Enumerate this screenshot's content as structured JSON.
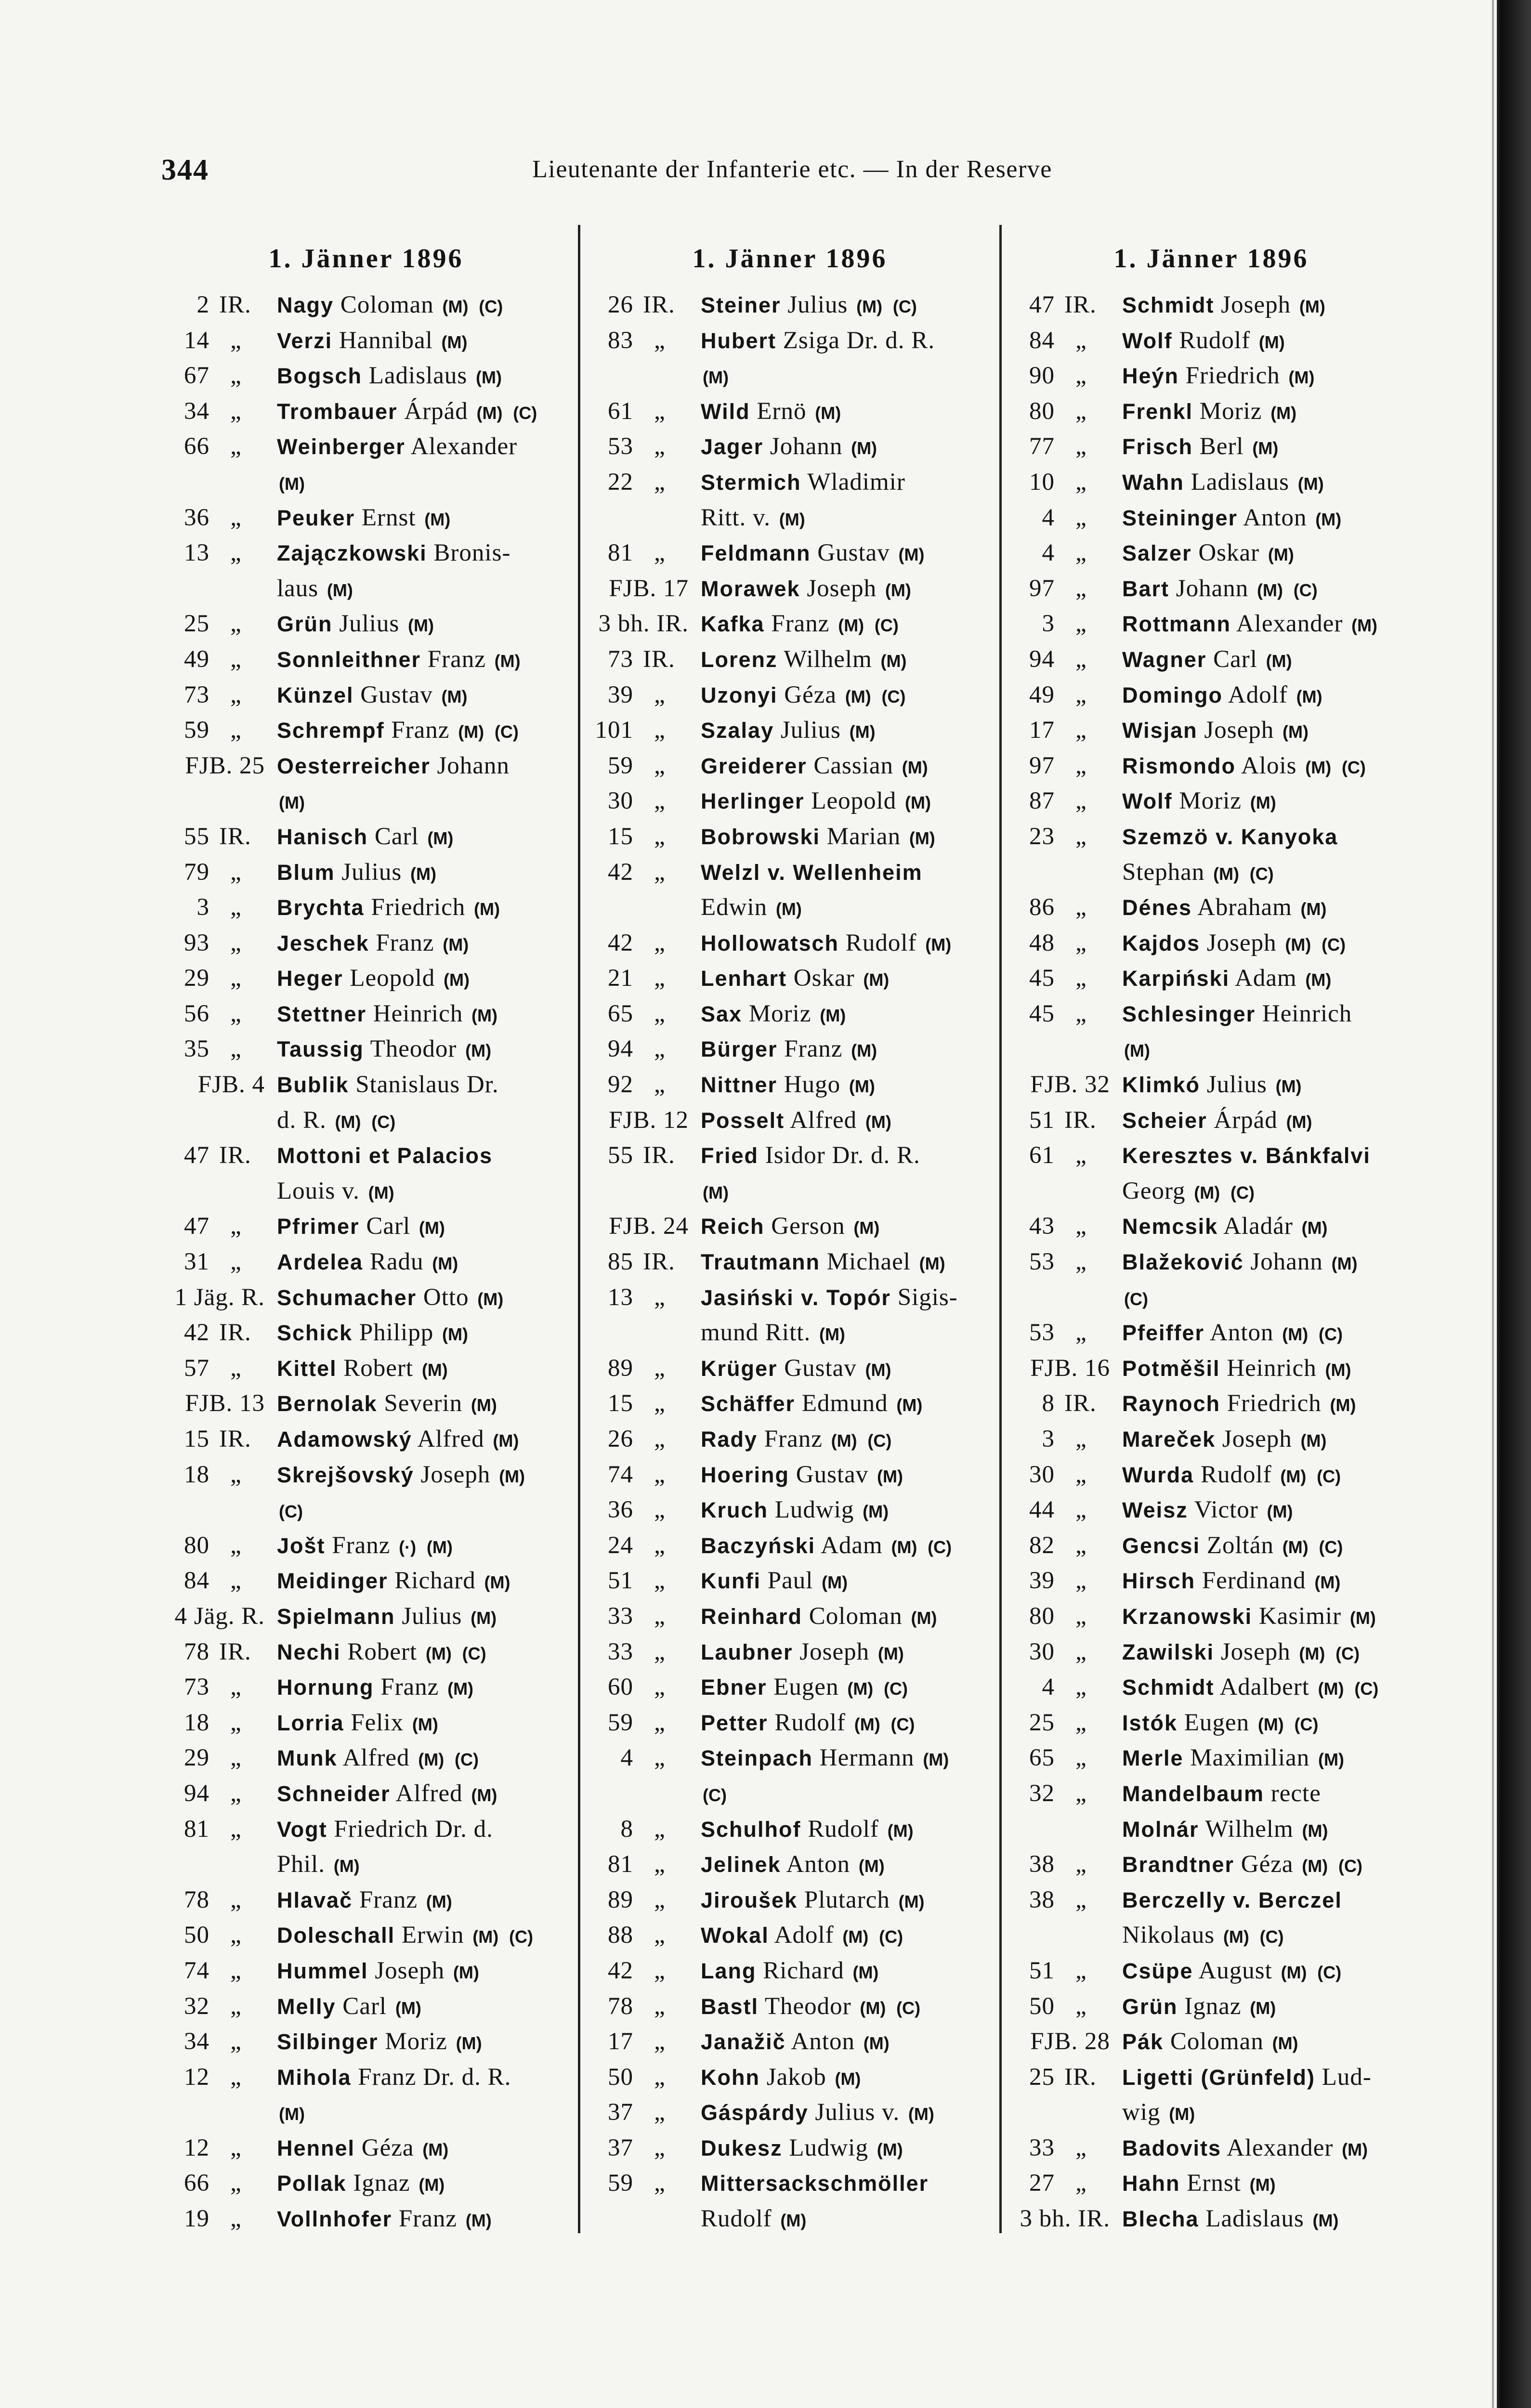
{
  "page_number": "344",
  "running_head": "Lieutenante der Infanterie etc. — In der Reserve",
  "columns": [
    {
      "heading": "1. Jänner 1896",
      "entries": [
        {
          "n": "2",
          "u": "IR.",
          "b": "Nagy",
          "t": "Coloman (M) (C)"
        },
        {
          "n": "14",
          "b": "Verzi",
          "t": "Hannibal (M)"
        },
        {
          "n": "67",
          "b": "Bogsch",
          "t": "Ladislaus (M)"
        },
        {
          "n": "34",
          "b": "Trombauer",
          "t": "Árpád (M) (C)"
        },
        {
          "n": "66",
          "b": "Weinberger",
          "t": "Alexander",
          "l2": "(M)"
        },
        {
          "n": "36",
          "b": "Peuker",
          "t": "Ernst (M)"
        },
        {
          "n": "13",
          "b": "Zajączkowski",
          "t": "Bronis-",
          "l2": "laus (M)"
        },
        {
          "n": "25",
          "b": "Grün",
          "t": "Julius (M)"
        },
        {
          "n": "49",
          "b": "Sonnleithner",
          "t": "Franz (M)"
        },
        {
          "n": "73",
          "b": "Künzel",
          "t": "Gustav (M)"
        },
        {
          "n": "59",
          "b": "Schrempf",
          "t": "Franz (M) (C)"
        },
        {
          "p": "FJB. 25",
          "b": "Oesterreicher",
          "t": "Johann",
          "l2": "(M)"
        },
        {
          "n": "55",
          "u": "IR.",
          "b": "Hanisch",
          "t": "Carl (M)"
        },
        {
          "n": "79",
          "b": "Blum",
          "t": "Julius (M)"
        },
        {
          "n": "3",
          "b": "Brychta",
          "t": "Friedrich (M)"
        },
        {
          "n": "93",
          "b": "Jeschek",
          "t": "Franz (M)"
        },
        {
          "n": "29",
          "b": "Heger",
          "t": "Leopold (M)"
        },
        {
          "n": "56",
          "b": "Stettner",
          "t": "Heinrich (M)"
        },
        {
          "n": "35",
          "b": "Taussig",
          "t": "Theodor (M)"
        },
        {
          "p": "FJB. 4",
          "b": "Bublik",
          "t": "Stanislaus Dr.",
          "l2": "d. R. (M) (C)"
        },
        {
          "n": "47",
          "u": "IR.",
          "b": "Mottoni et Palacios",
          "t": "",
          "l2": "Louis v. (M)"
        },
        {
          "n": "47",
          "b": "Pfrimer",
          "t": "Carl (M)"
        },
        {
          "n": "31",
          "b": "Ardelea",
          "t": "Radu (M)"
        },
        {
          "p": "1 Jäg. R.",
          "b": "Schumacher",
          "t": "Otto (M)"
        },
        {
          "n": "42",
          "u": "IR.",
          "b": "Schick",
          "t": "Philipp (M)"
        },
        {
          "n": "57",
          "b": "Kittel",
          "t": "Robert (M)"
        },
        {
          "p": "FJB. 13",
          "b": "Bernolak",
          "t": "Severin (M)"
        },
        {
          "n": "15",
          "u": "IR.",
          "b": "Adamowský",
          "t": "Alfred (M)"
        },
        {
          "n": "18",
          "b": "Skrejšovský",
          "t": "Joseph (M)",
          "l2": "(C)"
        },
        {
          "n": "80",
          "b": "Jošt",
          "t": "Franz (·) (M)"
        },
        {
          "n": "84",
          "b": "Meidinger",
          "t": "Richard (M)"
        },
        {
          "p": "4 Jäg. R.",
          "b": "Spielmann",
          "t": "Julius (M)"
        },
        {
          "n": "78",
          "u": "IR.",
          "b": "Nechi",
          "t": "Robert (M) (C)"
        },
        {
          "n": "73",
          "b": "Hornung",
          "t": "Franz (M)"
        },
        {
          "n": "18",
          "b": "Lorria",
          "t": "Felix (M)"
        },
        {
          "n": "29",
          "b": "Munk",
          "t": "Alfred (M) (C)"
        },
        {
          "n": "94",
          "b": "Schneider",
          "t": "Alfred (M)"
        },
        {
          "n": "81",
          "b": "Vogt",
          "t": "Friedrich Dr. d.",
          "l2": "Phil. (M)"
        },
        {
          "n": "78",
          "b": "Hlavač",
          "t": "Franz (M)"
        },
        {
          "n": "50",
          "b": "Doleschall",
          "t": "Erwin (M) (C)"
        },
        {
          "n": "74",
          "b": "Hummel",
          "t": "Joseph (M)"
        },
        {
          "n": "32",
          "b": "Melly",
          "t": "Carl (M)"
        },
        {
          "n": "34",
          "b": "Silbinger",
          "t": "Moriz (M)"
        },
        {
          "n": "12",
          "b": "Mihola",
          "t": "Franz Dr. d. R.",
          "l2": "(M)"
        },
        {
          "n": "12",
          "b": "Hennel",
          "t": "Géza (M)"
        },
        {
          "n": "66",
          "b": "Pollak",
          "t": "Ignaz (M)"
        },
        {
          "n": "19",
          "b": "Vollnhofer",
          "t": "Franz (M)"
        }
      ]
    },
    {
      "heading": "1. Jänner 1896",
      "entries": [
        {
          "n": "26",
          "u": "IR.",
          "b": "Steiner",
          "t": "Julius (M) (C)"
        },
        {
          "n": "83",
          "b": "Hubert",
          "t": "Zsiga Dr. d. R.",
          "l2": "(M)"
        },
        {
          "n": "61",
          "b": "Wild",
          "t": "Ernö (M)"
        },
        {
          "n": "53",
          "b": "Jager",
          "t": "Johann (M)"
        },
        {
          "n": "22",
          "b": "Stermich",
          "t": "Wladimir",
          "l2": "Ritt. v. (M)"
        },
        {
          "n": "81",
          "b": "Feldmann",
          "t": "Gustav (M)"
        },
        {
          "p": "FJB. 17",
          "b": "Morawek",
          "t": "Joseph (M)"
        },
        {
          "p": "3 bh. IR.",
          "b": "Kafka",
          "t": "Franz (M) (C)"
        },
        {
          "n": "73",
          "u": "IR.",
          "b": "Lorenz",
          "t": "Wilhelm (M)"
        },
        {
          "n": "39",
          "b": "Uzonyi",
          "t": "Géza (M) (C)"
        },
        {
          "n": "101",
          "b": "Szalay",
          "t": "Julius (M)"
        },
        {
          "n": "59",
          "b": "Greiderer",
          "t": "Cassian (M)"
        },
        {
          "n": "30",
          "b": "Herlinger",
          "t": "Leopold (M)"
        },
        {
          "n": "15",
          "b": "Bobrowski",
          "t": "Marian (M)"
        },
        {
          "n": "42",
          "b": "Welzl v. Wellenheim",
          "t": "",
          "l2": "Edwin (M)"
        },
        {
          "n": "42",
          "b": "Hollowatsch",
          "t": "Rudolf (M)"
        },
        {
          "n": "21",
          "b": "Lenhart",
          "t": "Oskar (M)"
        },
        {
          "n": "65",
          "b": "Sax",
          "t": "Moriz (M)"
        },
        {
          "n": "94",
          "b": "Bürger",
          "t": "Franz (M)"
        },
        {
          "n": "92",
          "b": "Nittner",
          "t": "Hugo (M)"
        },
        {
          "p": "FJB. 12",
          "b": "Posselt",
          "t": "Alfred (M)"
        },
        {
          "n": "55",
          "u": "IR.",
          "b": "Fried",
          "t": "Isidor Dr. d. R.",
          "l2": "(M)"
        },
        {
          "p": "FJB. 24",
          "b": "Reich",
          "t": "Gerson (M)"
        },
        {
          "n": "85",
          "u": "IR.",
          "b": "Trautmann",
          "t": "Michael (M)"
        },
        {
          "n": "13",
          "b": "Jasiński v. Topór",
          "t": "Sigis-",
          "l2": "mund Ritt. (M)"
        },
        {
          "n": "89",
          "b": "Krüger",
          "t": "Gustav (M)"
        },
        {
          "n": "15",
          "b": "Schäffer",
          "t": "Edmund (M)"
        },
        {
          "n": "26",
          "b": "Rady",
          "t": "Franz (M) (C)"
        },
        {
          "n": "74",
          "b": "Hoering",
          "t": "Gustav (M)"
        },
        {
          "n": "36",
          "b": "Kruch",
          "t": "Ludwig (M)"
        },
        {
          "n": "24",
          "b": "Baczyński",
          "t": "Adam (M) (C)"
        },
        {
          "n": "51",
          "b": "Kunfi",
          "t": "Paul (M)"
        },
        {
          "n": "33",
          "b": "Reinhard",
          "t": "Coloman (M)"
        },
        {
          "n": "33",
          "b": "Laubner",
          "t": "Joseph (M)"
        },
        {
          "n": "60",
          "b": "Ebner",
          "t": "Eugen (M) (C)"
        },
        {
          "n": "59",
          "b": "Petter",
          "t": "Rudolf (M) (C)"
        },
        {
          "n": "4",
          "b": "Steinpach",
          "t": "Hermann (M)",
          "l2": "(C)"
        },
        {
          "n": "8",
          "b": "Schulhof",
          "t": "Rudolf (M)"
        },
        {
          "n": "81",
          "b": "Jelinek",
          "t": "Anton (M)"
        },
        {
          "n": "89",
          "b": "Jiroušek",
          "t": "Plutarch (M)"
        },
        {
          "n": "88",
          "b": "Wokal",
          "t": "Adolf (M) (C)"
        },
        {
          "n": "42",
          "b": "Lang",
          "t": "Richard (M)"
        },
        {
          "n": "78",
          "b": "Bastl",
          "t": "Theodor (M) (C)"
        },
        {
          "n": "17",
          "b": "Janažič",
          "t": "Anton (M)"
        },
        {
          "n": "50",
          "b": "Kohn",
          "t": "Jakob (M)"
        },
        {
          "n": "37",
          "b": "Gáspárdy",
          "t": "Julius v. (M)"
        },
        {
          "n": "37",
          "b": "Dukesz",
          "t": "Ludwig (M)"
        },
        {
          "n": "59",
          "b": "Mittersackschmöller",
          "t": "",
          "l2": "Rudolf (M)"
        }
      ]
    },
    {
      "heading": "1. Jänner 1896",
      "entries": [
        {
          "n": "47",
          "u": "IR.",
          "b": "Schmidt",
          "t": "Joseph (M)"
        },
        {
          "n": "84",
          "b": "Wolf",
          "t": "Rudolf (M)"
        },
        {
          "n": "90",
          "b": "Heýn",
          "t": "Friedrich (M)"
        },
        {
          "n": "80",
          "b": "Frenkl",
          "t": "Moriz (M)"
        },
        {
          "n": "77",
          "b": "Frisch",
          "t": "Berl (M)"
        },
        {
          "n": "10",
          "b": "Wahn",
          "t": "Ladislaus (M)"
        },
        {
          "n": "4",
          "b": "Steininger",
          "t": "Anton (M)"
        },
        {
          "n": "4",
          "b": "Salzer",
          "t": "Oskar (M)"
        },
        {
          "n": "97",
          "b": "Bart",
          "t": "Johann (M) (C)"
        },
        {
          "n": "3",
          "b": "Rottmann",
          "t": "Alexander (M)"
        },
        {
          "n": "94",
          "b": "Wagner",
          "t": "Carl (M)"
        },
        {
          "n": "49",
          "b": "Domingo",
          "t": "Adolf (M)"
        },
        {
          "n": "17",
          "b": "Wisjan",
          "t": "Joseph (M)"
        },
        {
          "n": "97",
          "b": "Rismondo",
          "t": "Alois (M) (C)"
        },
        {
          "n": "87",
          "b": "Wolf",
          "t": "Moriz (M)"
        },
        {
          "n": "23",
          "b": "Szemzö v. Kanyoka",
          "t": "",
          "l2": "Stephan (M) (C)"
        },
        {
          "n": "86",
          "b": "Dénes",
          "t": "Abraham (M)"
        },
        {
          "n": "48",
          "b": "Kajdos",
          "t": "Joseph (M) (C)"
        },
        {
          "n": "45",
          "b": "Karpiński",
          "t": "Adam (M)"
        },
        {
          "n": "45",
          "b": "Schlesinger",
          "t": "Heinrich",
          "l2": "(M)"
        },
        {
          "p": "FJB. 32",
          "b": "Klimkó",
          "t": "Julius (M)"
        },
        {
          "n": "51",
          "u": "IR.",
          "b": "Scheier",
          "t": "Árpád (M)"
        },
        {
          "n": "61",
          "b": "Keresztes v. Bánkfalvi",
          "t": "",
          "l2": "Georg (M) (C)"
        },
        {
          "n": "43",
          "b": "Nemcsik",
          "t": "Aladár (M)"
        },
        {
          "n": "53",
          "b": "Blažeković",
          "t": "Johann (M)",
          "l2": "(C)"
        },
        {
          "n": "53",
          "b": "Pfeiffer",
          "t": "Anton (M) (C)"
        },
        {
          "p": "FJB. 16",
          "b": "Potměšil",
          "t": "Heinrich (M)"
        },
        {
          "n": "8",
          "u": "IR.",
          "b": "Raynoch",
          "t": "Friedrich (M)"
        },
        {
          "n": "3",
          "b": "Mareček",
          "t": "Joseph (M)"
        },
        {
          "n": "30",
          "b": "Wurda",
          "t": "Rudolf (M) (C)"
        },
        {
          "n": "44",
          "b": "Weisz",
          "t": "Victor (M)"
        },
        {
          "n": "82",
          "b": "Gencsi",
          "t": "Zoltán (M) (C)"
        },
        {
          "n": "39",
          "b": "Hirsch",
          "t": "Ferdinand (M)"
        },
        {
          "n": "80",
          "b": "Krzanowski",
          "t": "Kasimir (M)"
        },
        {
          "n": "30",
          "b": "Zawilski",
          "t": "Joseph (M) (C)"
        },
        {
          "n": "4",
          "b": "Schmidt",
          "t": "Adalbert (M) (C)"
        },
        {
          "n": "25",
          "b": "Istók",
          "t": "Eugen (M) (C)"
        },
        {
          "n": "65",
          "b": "Merle",
          "t": "Maximilian (M)"
        },
        {
          "n": "32",
          "b": "Mandelbaum",
          "t": "recte",
          "l2b": "Molnár",
          "l2": "Wilhelm (M)"
        },
        {
          "n": "38",
          "b": "Brandtner",
          "t": "Géza (M) (C)"
        },
        {
          "n": "38",
          "b": "Berczelly v. Berczel",
          "t": "",
          "l2": "Nikolaus (M) (C)"
        },
        {
          "n": "51",
          "b": "Csüpe",
          "t": "August (M) (C)"
        },
        {
          "n": "50",
          "b": "Grün",
          "t": "Ignaz (M)"
        },
        {
          "p": "FJB. 28",
          "b": "Pák",
          "t": "Coloman (M)"
        },
        {
          "n": "25",
          "u": "IR.",
          "b": "Ligetti (Grünfeld)",
          "t": "Lud-",
          "l2": "wig (M)"
        },
        {
          "n": "33",
          "b": "Badovits",
          "t": "Alexander (M)"
        },
        {
          "n": "27",
          "b": "Hahn",
          "t": "Ernst (M)"
        },
        {
          "p": "3 bh. IR.",
          "b": "Blecha",
          "t": "Ladislaus (M)"
        }
      ]
    }
  ],
  "ditto_mark": "„",
  "marks": {
    "(M)": "M",
    "(C)": "C",
    "(·)": "·"
  }
}
